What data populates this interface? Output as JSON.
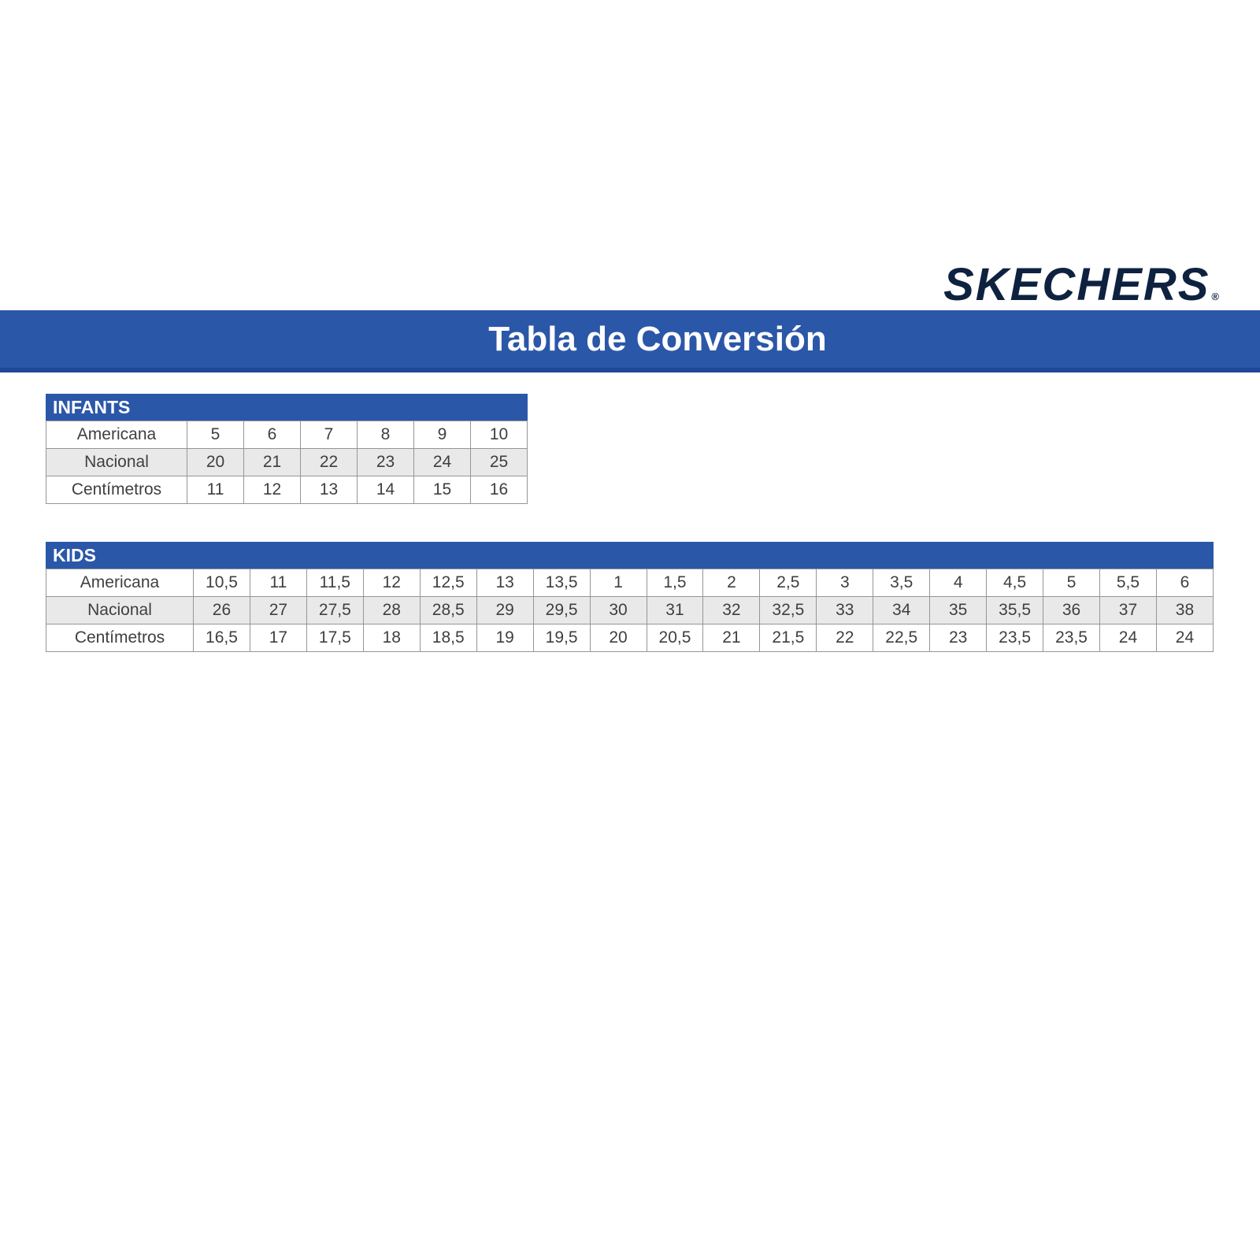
{
  "logo": {
    "text": "SKECHERS",
    "trademark": "®"
  },
  "banner": {
    "title": "Tabla de Conversión"
  },
  "colors": {
    "banner_blue": "#2b57a8",
    "banner_accent_dark": "#1f4698",
    "logo_navy": "#0e2240",
    "alt_row_gray": "#e9e9e9",
    "border_gray": "#969696",
    "cell_text": "#3f3f3f"
  },
  "tables": [
    {
      "title": "INFANTS",
      "rows": [
        {
          "label": "Americana",
          "values": [
            "5",
            "6",
            "7",
            "8",
            "9",
            "10"
          ]
        },
        {
          "label": "Nacional",
          "values": [
            "20",
            "21",
            "22",
            "23",
            "24",
            "25"
          ]
        },
        {
          "label": "Centímetros",
          "values": [
            "11",
            "12",
            "13",
            "14",
            "15",
            "16"
          ]
        }
      ]
    },
    {
      "title": "KIDS",
      "rows": [
        {
          "label": "Americana",
          "values": [
            "10,5",
            "11",
            "11,5",
            "12",
            "12,5",
            "13",
            "13,5",
            "1",
            "1,5",
            "2",
            "2,5",
            "3",
            "3,5",
            "4",
            "4,5",
            "5",
            "5,5",
            "6"
          ]
        },
        {
          "label": "Nacional",
          "values": [
            "26",
            "27",
            "27,5",
            "28",
            "28,5",
            "29",
            "29,5",
            "30",
            "31",
            "32",
            "32,5",
            "33",
            "34",
            "35",
            "35,5",
            "36",
            "37",
            "38"
          ]
        },
        {
          "label": "Centímetros",
          "values": [
            "16,5",
            "17",
            "17,5",
            "18",
            "18,5",
            "19",
            "19,5",
            "20",
            "20,5",
            "21",
            "21,5",
            "22",
            "22,5",
            "23",
            "23,5",
            "23,5",
            "24",
            "24"
          ]
        }
      ]
    }
  ]
}
